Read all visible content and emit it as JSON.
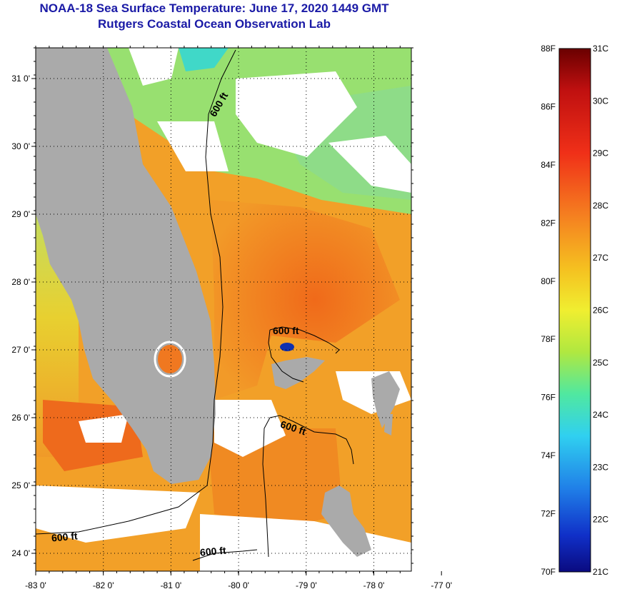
{
  "title": {
    "line1": "NOAA-18 Sea Surface Temperature:  June 17, 2020 1449 GMT",
    "line2": "Rutgers Coastal Ocean Observation Lab"
  },
  "axes": {
    "lon_labels": [
      "-83 0'",
      "-82 0'",
      "-81 0'",
      "-80 0'",
      "-79 0'",
      "-78 0'",
      "-77 0'"
    ],
    "lat_labels": [
      "31 0'",
      "30 0'",
      "29 0'",
      "28 0'",
      "27 0'",
      "26 0'",
      "25 0'",
      "24 0'"
    ]
  },
  "contours": {
    "label": "600 ft"
  },
  "colorbar": {
    "f_labels": [
      "88F",
      "86F",
      "84F",
      "82F",
      "80F",
      "78F",
      "76F",
      "74F",
      "72F",
      "70F"
    ],
    "c_labels": [
      "31C",
      "30C",
      "29C",
      "28C",
      "27C",
      "26C",
      "25C",
      "24C",
      "23C",
      "22C",
      "21C"
    ],
    "min_c": 21,
    "max_c": 31
  },
  "colors": {
    "land": "#aaaaaa",
    "cloud": "#ffffff",
    "warm_water": "#f07820",
    "mid_water": "#f2b020",
    "cool_water": "#a8e060",
    "title_blue": "#1a1aa6"
  }
}
